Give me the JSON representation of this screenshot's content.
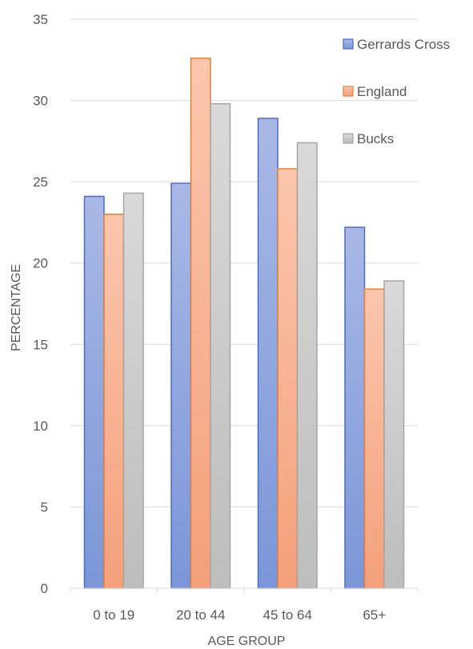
{
  "chart_data": {
    "type": "bar",
    "title": "",
    "xlabel": "AGE GROUP",
    "ylabel": "PERCENTAGE",
    "categories": [
      "0 to 19",
      "20 to 44",
      "45 to 64",
      "65+"
    ],
    "ylim": [
      0,
      35
    ],
    "yticks": [
      0,
      5,
      10,
      15,
      20,
      25,
      30,
      35
    ],
    "grid": true,
    "legend_position": "top-right",
    "series": [
      {
        "name": "Gerrards Cross",
        "values": [
          24.1,
          24.9,
          28.9,
          22.2
        ],
        "color_top": "#a9b8e6",
        "color_bottom": "#7b96d8",
        "stroke": "#4a6cc4"
      },
      {
        "name": "England",
        "values": [
          23.0,
          32.6,
          25.8,
          18.4
        ],
        "color_top": "#fbc6ad",
        "color_bottom": "#f4a07a",
        "stroke": "#ed7d31"
      },
      {
        "name": "Bucks",
        "values": [
          24.3,
          29.8,
          27.4,
          18.9
        ],
        "color_top": "#d9d9d9",
        "color_bottom": "#bdbdbd",
        "stroke": "#a5a5a5"
      }
    ]
  }
}
